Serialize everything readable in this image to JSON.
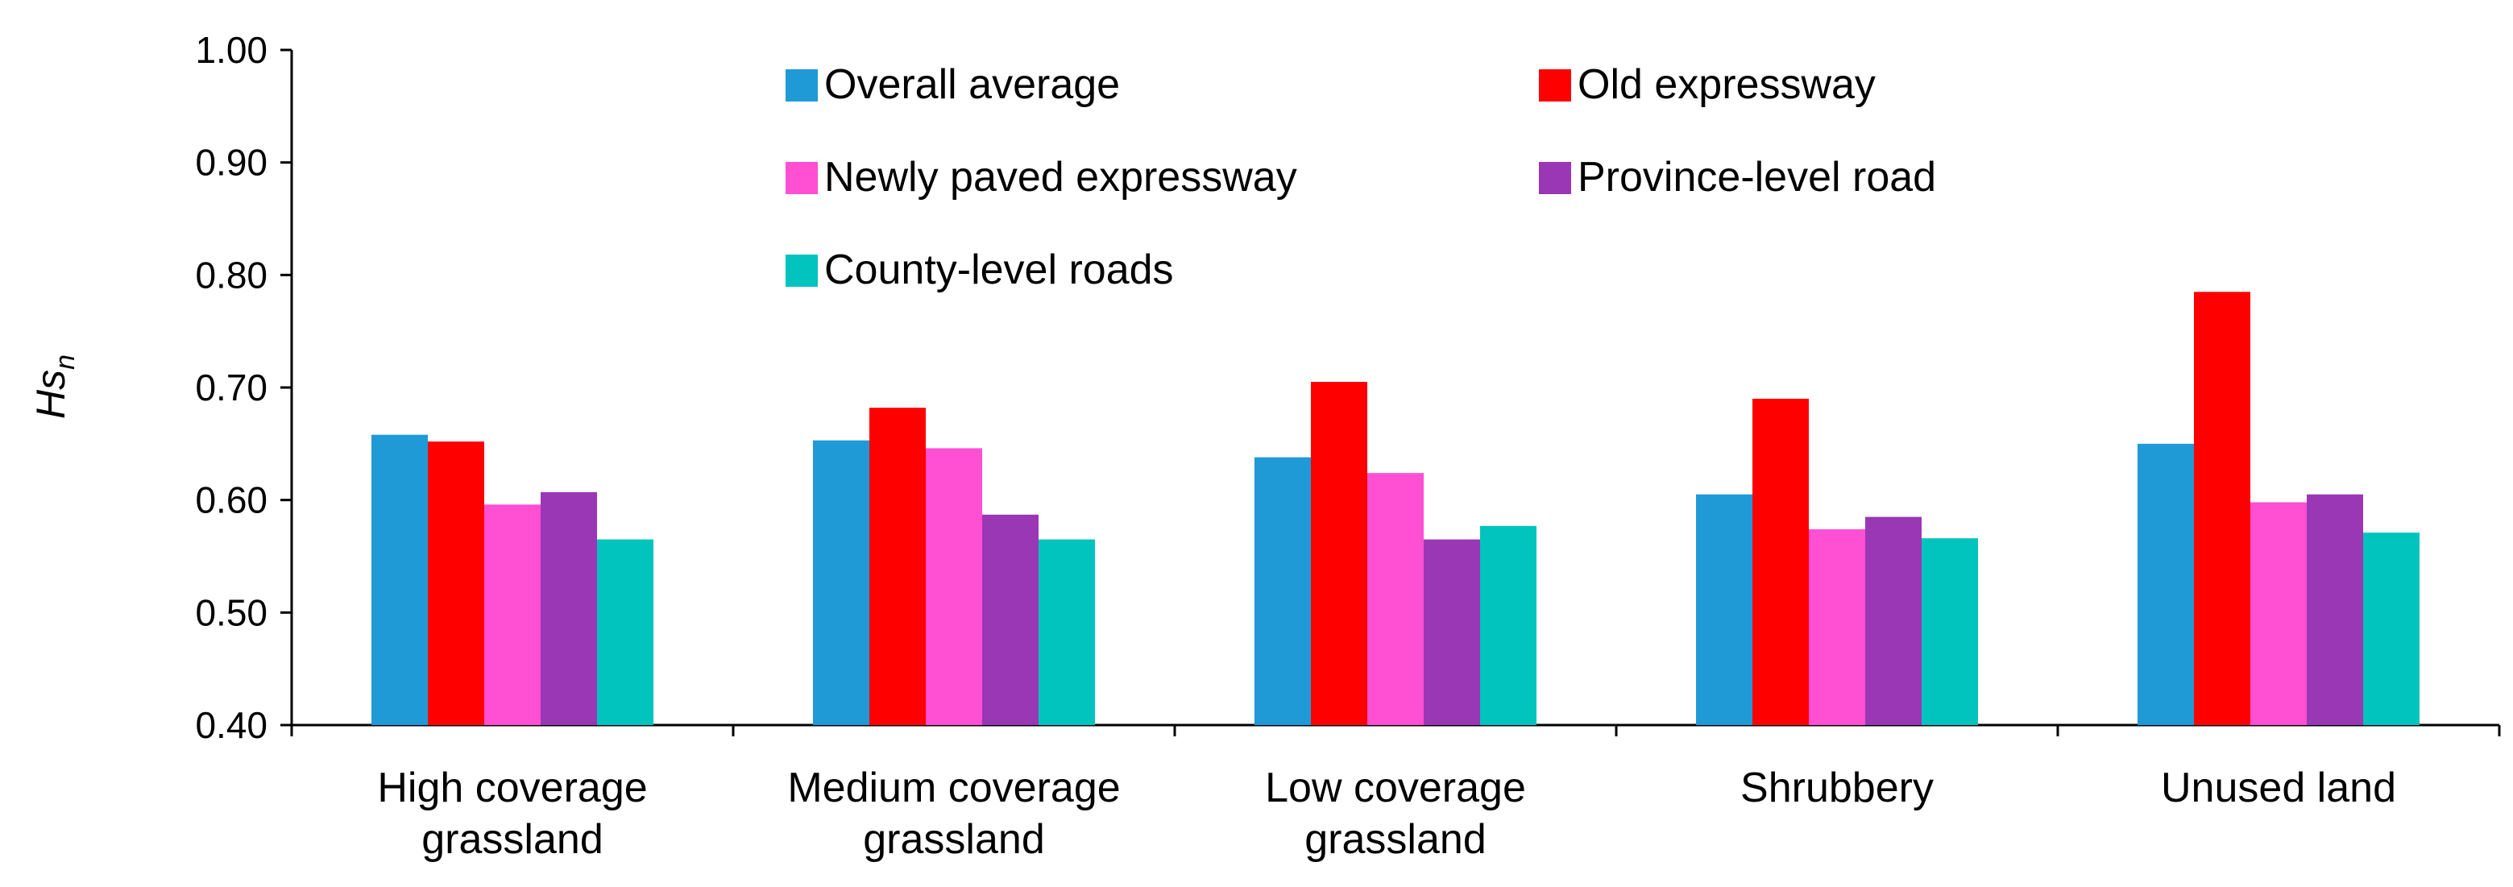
{
  "chart_data": {
    "type": "bar",
    "title": "",
    "xlabel": "",
    "ylabel": "Hs",
    "ylabel_subscript": "n",
    "ylim": [
      0.4,
      1.0
    ],
    "yticks": [
      "0.40",
      "0.50",
      "0.60",
      "0.70",
      "0.80",
      "0.90",
      "1.00"
    ],
    "grid": false,
    "legend_position": "top-center",
    "categories": [
      [
        "High coverage",
        "grassland"
      ],
      [
        "Medium coverage",
        "grassland"
      ],
      [
        "Low coverage",
        "grassland"
      ],
      [
        "Shrubbery"
      ],
      [
        "Unused land"
      ]
    ],
    "series": [
      {
        "name": "Overall average",
        "color": "#1f9ad6",
        "values": [
          0.658,
          0.653,
          0.638,
          0.605,
          0.65
        ]
      },
      {
        "name": "Old expressway",
        "color": "#ff0000",
        "values": [
          0.652,
          0.682,
          0.705,
          0.69,
          0.785
        ]
      },
      {
        "name": "Newly paved expressway",
        "color": "#ff4fd2",
        "values": [
          0.596,
          0.646,
          0.624,
          0.574,
          0.598
        ]
      },
      {
        "name": "Province-level road",
        "color": "#9a37b5",
        "values": [
          0.607,
          0.587,
          0.565,
          0.585,
          0.605
        ]
      },
      {
        "name": "County-level roads",
        "color": "#00c4bd",
        "values": [
          0.565,
          0.565,
          0.577,
          0.566,
          0.571
        ]
      }
    ]
  }
}
